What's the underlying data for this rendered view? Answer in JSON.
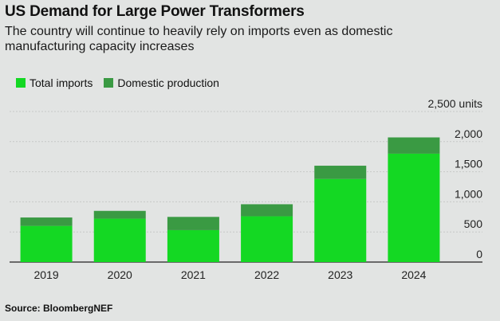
{
  "title": "US Demand for Large Power Transformers",
  "subtitle": "The country will continue to heavily rely on imports even as domestic manufacturing capacity increases",
  "source": "Source: BloombergNEF",
  "chart_data": {
    "type": "bar",
    "stacked": true,
    "title": "US Demand for Large Power Transformers",
    "categories": [
      "2019",
      "2020",
      "2021",
      "2022",
      "2023",
      "2024"
    ],
    "series": [
      {
        "name": "Total imports",
        "color": "#14d823",
        "values": [
          600,
          720,
          530,
          760,
          1380,
          1800
        ]
      },
      {
        "name": "Domestic production",
        "color": "#3a9a43",
        "values": [
          140,
          130,
          220,
          200,
          220,
          270
        ]
      }
    ],
    "yticks": [
      0,
      500,
      1000,
      1500,
      2000,
      2500
    ],
    "ytick_labels": [
      "0",
      "500",
      "1,000",
      "1,500",
      "2,000",
      "2,500 units"
    ],
    "ylim": [
      0,
      2500
    ],
    "xlabel": "",
    "ylabel": "",
    "legend": "top-left",
    "grid": true
  }
}
